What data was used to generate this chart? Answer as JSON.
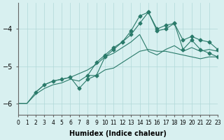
{
  "title": "",
  "xlabel": "Humidex (Indice chaleur)",
  "ylabel": "",
  "background_color": "#d8f0f0",
  "grid_color": "#b0d8d8",
  "line_color": "#2a7a6a",
  "xlim": [
    0,
    23
  ],
  "ylim": [
    -6.3,
    -3.3
  ],
  "yticks": [
    -6,
    -5,
    -4
  ],
  "xticks": [
    0,
    1,
    2,
    3,
    4,
    5,
    6,
    7,
    8,
    9,
    10,
    11,
    12,
    13,
    14,
    15,
    16,
    17,
    18,
    19,
    20,
    21,
    22,
    23
  ],
  "series": [
    {
      "x": [
        0,
        1,
        2,
        3,
        4,
        5,
        6,
        7,
        8,
        9,
        10,
        11,
        12,
        13,
        14,
        15,
        16,
        17,
        18,
        19,
        20,
        21,
        22,
        23
      ],
      "y": [
        -6.0,
        -6.0,
        -5.75,
        -5.6,
        -5.5,
        -5.45,
        -5.35,
        -5.4,
        -5.25,
        -5.25,
        -5.1,
        -5.05,
        -4.9,
        -4.75,
        -4.6,
        -4.55,
        -4.6,
        -4.6,
        -4.65,
        -4.7,
        -4.75,
        -4.8,
        -4.75,
        -4.75
      ],
      "marker": false
    },
    {
      "x": [
        0,
        1,
        2,
        3,
        4,
        5,
        6,
        7,
        8,
        9,
        10,
        11,
        12,
        13,
        14,
        15,
        16,
        17,
        18,
        19,
        20,
        21,
        22,
        23
      ],
      "y": [
        -6.0,
        -6.0,
        -5.7,
        -5.5,
        -5.4,
        -5.35,
        -5.3,
        -5.2,
        -5.1,
        -4.95,
        -4.75,
        -4.65,
        -4.5,
        -4.35,
        -4.15,
        -4.6,
        -4.7,
        -4.55,
        -4.45,
        -4.6,
        -4.5,
        -4.6,
        -4.55,
        -4.6
      ],
      "marker": false
    },
    {
      "x": [
        2,
        3,
        4,
        5,
        6,
        7,
        8,
        9,
        10,
        11,
        12,
        13,
        14,
        15,
        16,
        17,
        18,
        19,
        20,
        21,
        22,
        23
      ],
      "y": [
        -5.7,
        -5.5,
        -5.4,
        -5.35,
        -5.3,
        -5.6,
        -5.35,
        -5.25,
        -4.75,
        -4.55,
        -4.35,
        -4.05,
        -3.65,
        -3.55,
        -4.0,
        -3.9,
        -3.85,
        -4.55,
        -4.3,
        -4.55,
        -4.65,
        -4.75
      ],
      "marker": true
    },
    {
      "x": [
        8,
        9,
        10,
        11,
        12,
        13,
        14,
        15,
        16,
        17,
        18,
        19,
        20,
        21,
        22,
        23
      ],
      "y": [
        -5.25,
        -4.9,
        -4.7,
        -4.5,
        -4.35,
        -4.15,
        -3.85,
        -3.55,
        -4.05,
        -4.0,
        -3.85,
        -4.3,
        -4.2,
        -4.3,
        -4.35,
        -4.55
      ],
      "marker": true
    }
  ]
}
